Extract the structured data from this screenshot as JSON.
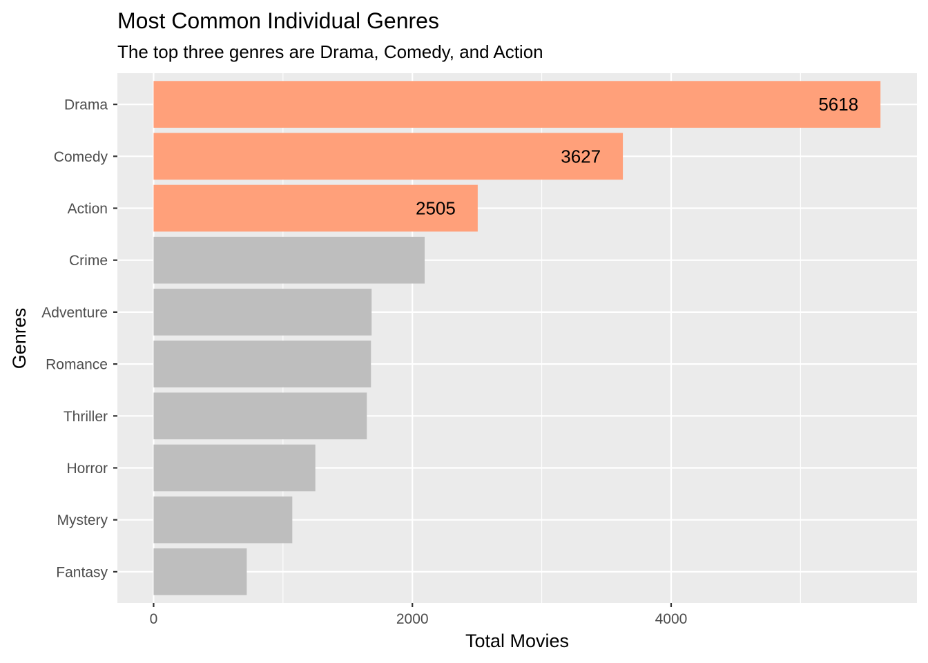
{
  "chart_data": {
    "type": "bar",
    "orientation": "horizontal",
    "title": "Most Common Individual Genres",
    "subtitle": "The top three genres are Drama, Comedy, and Action",
    "xlabel": "Total Movies",
    "ylabel": "Genres",
    "categories": [
      "Drama",
      "Comedy",
      "Action",
      "Crime",
      "Adventure",
      "Romance",
      "Thriller",
      "Horror",
      "Mystery",
      "Fantasy"
    ],
    "values": [
      5618,
      3627,
      2505,
      2095,
      1685,
      1680,
      1648,
      1250,
      1072,
      720
    ],
    "highlighted": [
      true,
      true,
      true,
      false,
      false,
      false,
      false,
      false,
      false,
      false
    ],
    "data_labels": [
      "5618",
      "3627",
      "2505",
      "",
      "",
      "",
      "",
      "",
      "",
      ""
    ],
    "xlim": [
      -280,
      5900
    ],
    "x_ticks": [
      0,
      2000,
      4000
    ],
    "x_tick_labels": [
      "0",
      "2000",
      "4000"
    ],
    "grid": true,
    "colors": {
      "highlight": "#FFA07A",
      "other": "#BEBEBE",
      "panel": "#EBEBEB",
      "grid": "#FFFFFF"
    }
  }
}
